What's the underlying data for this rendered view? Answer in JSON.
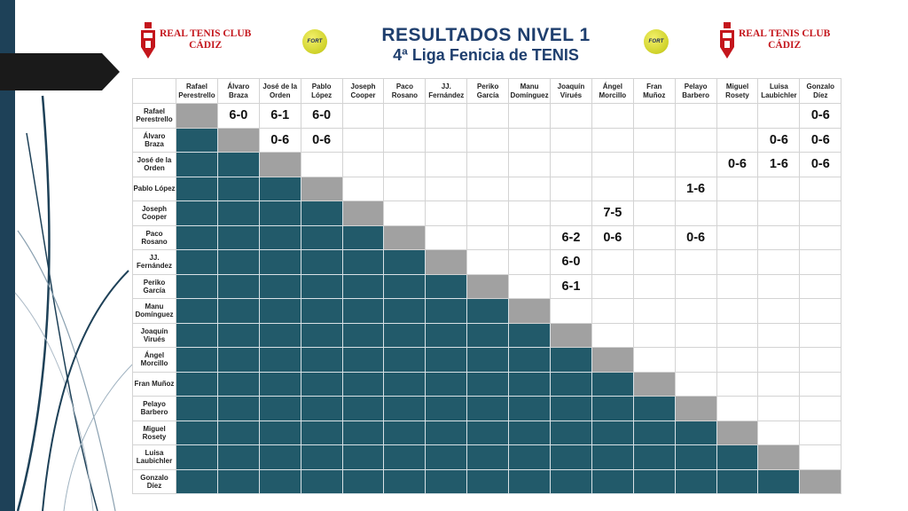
{
  "header": {
    "title": "RESULTADOS NIVEL 1",
    "subtitle": "4ª Liga Fenicia de TENIS"
  },
  "logos": {
    "club_name_line1": "REAL TENIS CLUB",
    "club_name_line2": "CÁDIZ",
    "ball_text": "FORT"
  },
  "colors": {
    "title": "#1f3f6e",
    "club_red": "#c4161c",
    "lower_triangle": "#225a6a",
    "diagonal": "#a1a1a1",
    "accent_dark": "#1e4158"
  },
  "players": [
    "Rafael\nPerestrello",
    "Álvaro\nBraza",
    "José de la\nOrden",
    "Pablo\nLópez",
    "Joseph\nCooper",
    "Paco\nRosano",
    "JJ.\nFernández",
    "Periko\nGarcía",
    "Manu\nDomínguez",
    "Joaquín\nVirués",
    "Ángel\nMorcillo",
    "Fran\nMuñoz",
    "Pelayo\nBarbero",
    "Miguel\nRosety",
    "Luisa\nLaubichler",
    "Gonzalo\nDíez"
  ],
  "row_labels": [
    "Rafael\nPerestrello",
    "Álvaro\nBraza",
    "José de la\nOrden",
    "Pablo López",
    "Joseph\nCooper",
    "Paco\nRosano",
    "JJ.\nFernández",
    "Periko\nGarcía",
    "Manu\nDomínguez",
    "Joaquín\nVirués",
    "Ángel\nMorcillo",
    "Fran Muñoz",
    "Pelayo\nBarbero",
    "Miguel\nRosety",
    "Luisa\nLaubichler",
    "Gonzalo\nDíez"
  ],
  "results": [
    {
      "row": 0,
      "col": 1,
      "score": "6-0"
    },
    {
      "row": 0,
      "col": 2,
      "score": "6-1"
    },
    {
      "row": 0,
      "col": 3,
      "score": "6-0"
    },
    {
      "row": 0,
      "col": 15,
      "score": "0-6"
    },
    {
      "row": 1,
      "col": 2,
      "score": "0-6"
    },
    {
      "row": 1,
      "col": 3,
      "score": "0-6"
    },
    {
      "row": 1,
      "col": 14,
      "score": "0-6"
    },
    {
      "row": 1,
      "col": 15,
      "score": "0-6"
    },
    {
      "row": 2,
      "col": 13,
      "score": "0-6"
    },
    {
      "row": 2,
      "col": 14,
      "score": "1-6"
    },
    {
      "row": 2,
      "col": 15,
      "score": "0-6"
    },
    {
      "row": 3,
      "col": 12,
      "score": "1-6"
    },
    {
      "row": 4,
      "col": 10,
      "score": "7-5"
    },
    {
      "row": 5,
      "col": 9,
      "score": "6-2"
    },
    {
      "row": 5,
      "col": 10,
      "score": "0-6"
    },
    {
      "row": 5,
      "col": 12,
      "score": "0-6"
    },
    {
      "row": 6,
      "col": 9,
      "score": "6-0"
    },
    {
      "row": 7,
      "col": 9,
      "score": "6-1"
    }
  ]
}
